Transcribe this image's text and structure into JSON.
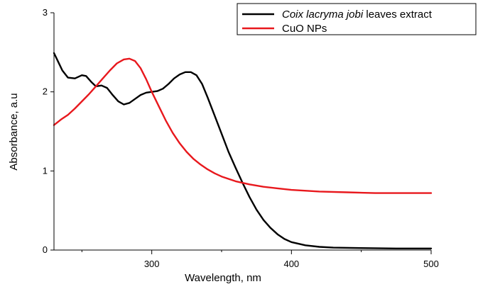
{
  "chart_data": {
    "type": "line",
    "xlabel": "Wavelength, nm",
    "ylabel": "Absorbance, a.u",
    "xlim": [
      230,
      500
    ],
    "ylim": [
      0,
      3
    ],
    "x_ticks": [
      300,
      400,
      500
    ],
    "x_minor_ticks": [
      250,
      350,
      450
    ],
    "y_ticks": [
      0,
      1,
      2,
      3
    ],
    "grid": false,
    "legend_position": "top-right",
    "series": [
      {
        "name_prefix": "Coix lacryma jobi",
        "name_suffix": " leaves extract",
        "color": "#000000",
        "points": [
          [
            230,
            2.49
          ],
          [
            233,
            2.38
          ],
          [
            236,
            2.27
          ],
          [
            240,
            2.18
          ],
          [
            245,
            2.17
          ],
          [
            250,
            2.21
          ],
          [
            253,
            2.2
          ],
          [
            257,
            2.12
          ],
          [
            260,
            2.07
          ],
          [
            264,
            2.08
          ],
          [
            268,
            2.05
          ],
          [
            272,
            1.96
          ],
          [
            276,
            1.88
          ],
          [
            280,
            1.84
          ],
          [
            284,
            1.86
          ],
          [
            288,
            1.91
          ],
          [
            292,
            1.96
          ],
          [
            296,
            1.99
          ],
          [
            300,
            2.0
          ],
          [
            304,
            2.01
          ],
          [
            308,
            2.04
          ],
          [
            312,
            2.1
          ],
          [
            316,
            2.17
          ],
          [
            320,
            2.22
          ],
          [
            324,
            2.25
          ],
          [
            328,
            2.25
          ],
          [
            332,
            2.21
          ],
          [
            336,
            2.1
          ],
          [
            340,
            1.93
          ],
          [
            345,
            1.7
          ],
          [
            350,
            1.47
          ],
          [
            355,
            1.24
          ],
          [
            360,
            1.04
          ],
          [
            365,
            0.85
          ],
          [
            370,
            0.67
          ],
          [
            375,
            0.51
          ],
          [
            380,
            0.38
          ],
          [
            385,
            0.28
          ],
          [
            390,
            0.2
          ],
          [
            395,
            0.14
          ],
          [
            400,
            0.1
          ],
          [
            410,
            0.06
          ],
          [
            420,
            0.04
          ],
          [
            430,
            0.03
          ],
          [
            450,
            0.025
          ],
          [
            475,
            0.02
          ],
          [
            500,
            0.02
          ]
        ]
      },
      {
        "name": "CuO NPs",
        "color": "#e8181d",
        "points": [
          [
            230,
            1.58
          ],
          [
            235,
            1.65
          ],
          [
            240,
            1.71
          ],
          [
            245,
            1.79
          ],
          [
            250,
            1.88
          ],
          [
            255,
            1.97
          ],
          [
            260,
            2.07
          ],
          [
            265,
            2.17
          ],
          [
            270,
            2.27
          ],
          [
            275,
            2.36
          ],
          [
            280,
            2.41
          ],
          [
            284,
            2.42
          ],
          [
            288,
            2.39
          ],
          [
            292,
            2.3
          ],
          [
            296,
            2.16
          ],
          [
            300,
            2.0
          ],
          [
            305,
            1.82
          ],
          [
            310,
            1.64
          ],
          [
            315,
            1.48
          ],
          [
            320,
            1.35
          ],
          [
            325,
            1.24
          ],
          [
            330,
            1.15
          ],
          [
            335,
            1.08
          ],
          [
            340,
            1.02
          ],
          [
            345,
            0.97
          ],
          [
            350,
            0.93
          ],
          [
            360,
            0.87
          ],
          [
            370,
            0.83
          ],
          [
            380,
            0.8
          ],
          [
            390,
            0.78
          ],
          [
            400,
            0.76
          ],
          [
            420,
            0.74
          ],
          [
            440,
            0.73
          ],
          [
            460,
            0.72
          ],
          [
            480,
            0.72
          ],
          [
            500,
            0.72
          ]
        ]
      }
    ]
  },
  "labels": {
    "y_tick_labels": [
      "0",
      "1",
      "2",
      "3"
    ],
    "x_tick_labels": [
      "300",
      "400",
      "500"
    ]
  }
}
